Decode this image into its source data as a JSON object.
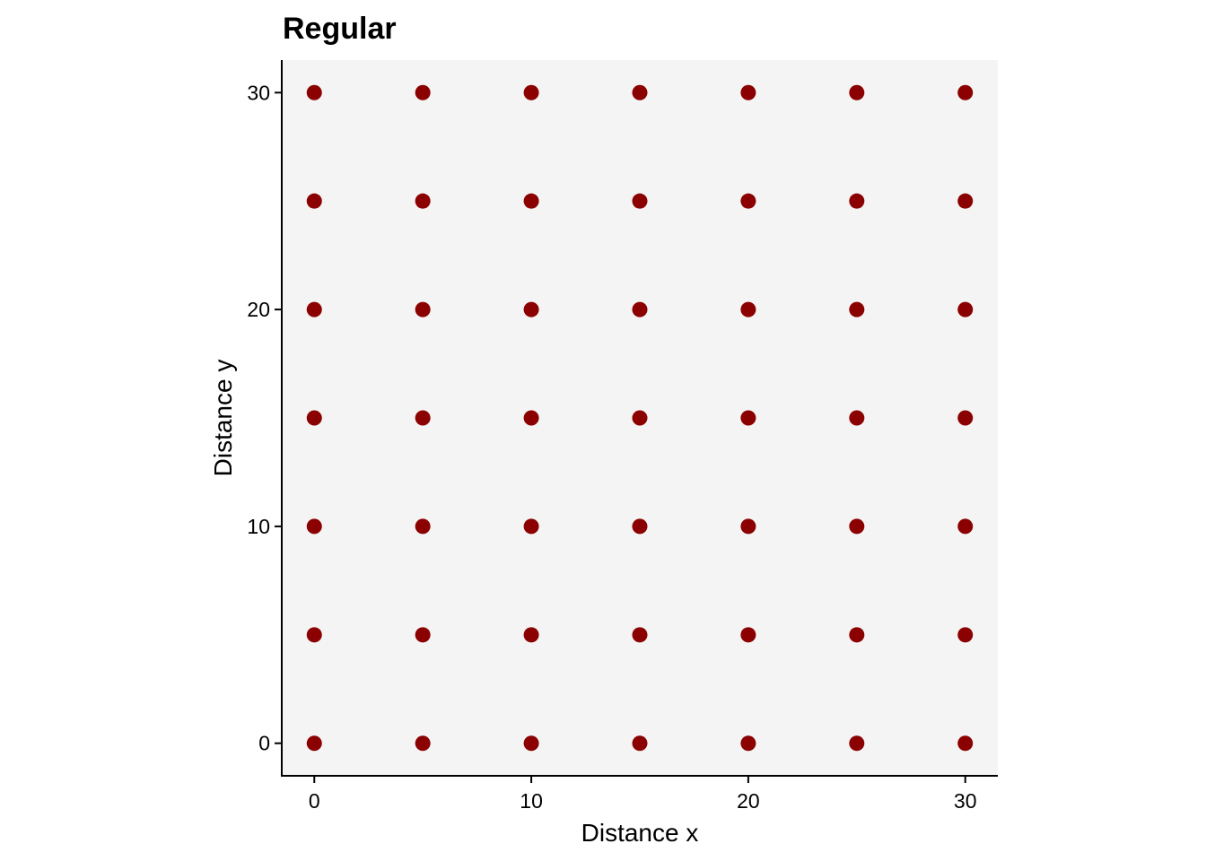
{
  "chart_data": {
    "type": "scatter",
    "title": "Regular",
    "xlabel": "Distance x",
    "ylabel": "Distance y",
    "xlim": [
      -1.5,
      31.5
    ],
    "ylim": [
      -1.5,
      31.5
    ],
    "x_ticks": [
      0,
      10,
      20,
      30
    ],
    "y_ticks": [
      0,
      10,
      20,
      30
    ],
    "x_tick_labels": [
      "0",
      "10",
      "20",
      "30"
    ],
    "y_tick_labels": [
      "0",
      "10",
      "20",
      "30"
    ],
    "grid": false,
    "legend": "none",
    "panel_background": "#f4f4f4",
    "point_color": "#8b0000",
    "points": [
      {
        "x": 0,
        "y": 0
      },
      {
        "x": 5,
        "y": 0
      },
      {
        "x": 10,
        "y": 0
      },
      {
        "x": 15,
        "y": 0
      },
      {
        "x": 20,
        "y": 0
      },
      {
        "x": 25,
        "y": 0
      },
      {
        "x": 30,
        "y": 0
      },
      {
        "x": 0,
        "y": 5
      },
      {
        "x": 5,
        "y": 5
      },
      {
        "x": 10,
        "y": 5
      },
      {
        "x": 15,
        "y": 5
      },
      {
        "x": 20,
        "y": 5
      },
      {
        "x": 25,
        "y": 5
      },
      {
        "x": 30,
        "y": 5
      },
      {
        "x": 0,
        "y": 10
      },
      {
        "x": 5,
        "y": 10
      },
      {
        "x": 10,
        "y": 10
      },
      {
        "x": 15,
        "y": 10
      },
      {
        "x": 20,
        "y": 10
      },
      {
        "x": 25,
        "y": 10
      },
      {
        "x": 30,
        "y": 10
      },
      {
        "x": 0,
        "y": 15
      },
      {
        "x": 5,
        "y": 15
      },
      {
        "x": 10,
        "y": 15
      },
      {
        "x": 15,
        "y": 15
      },
      {
        "x": 20,
        "y": 15
      },
      {
        "x": 25,
        "y": 15
      },
      {
        "x": 30,
        "y": 15
      },
      {
        "x": 0,
        "y": 20
      },
      {
        "x": 5,
        "y": 20
      },
      {
        "x": 10,
        "y": 20
      },
      {
        "x": 15,
        "y": 20
      },
      {
        "x": 20,
        "y": 20
      },
      {
        "x": 25,
        "y": 20
      },
      {
        "x": 30,
        "y": 20
      },
      {
        "x": 0,
        "y": 25
      },
      {
        "x": 5,
        "y": 25
      },
      {
        "x": 10,
        "y": 25
      },
      {
        "x": 15,
        "y": 25
      },
      {
        "x": 20,
        "y": 25
      },
      {
        "x": 25,
        "y": 25
      },
      {
        "x": 30,
        "y": 25
      },
      {
        "x": 0,
        "y": 30
      },
      {
        "x": 5,
        "y": 30
      },
      {
        "x": 10,
        "y": 30
      },
      {
        "x": 15,
        "y": 30
      },
      {
        "x": 20,
        "y": 30
      },
      {
        "x": 25,
        "y": 30
      },
      {
        "x": 30,
        "y": 30
      }
    ]
  }
}
